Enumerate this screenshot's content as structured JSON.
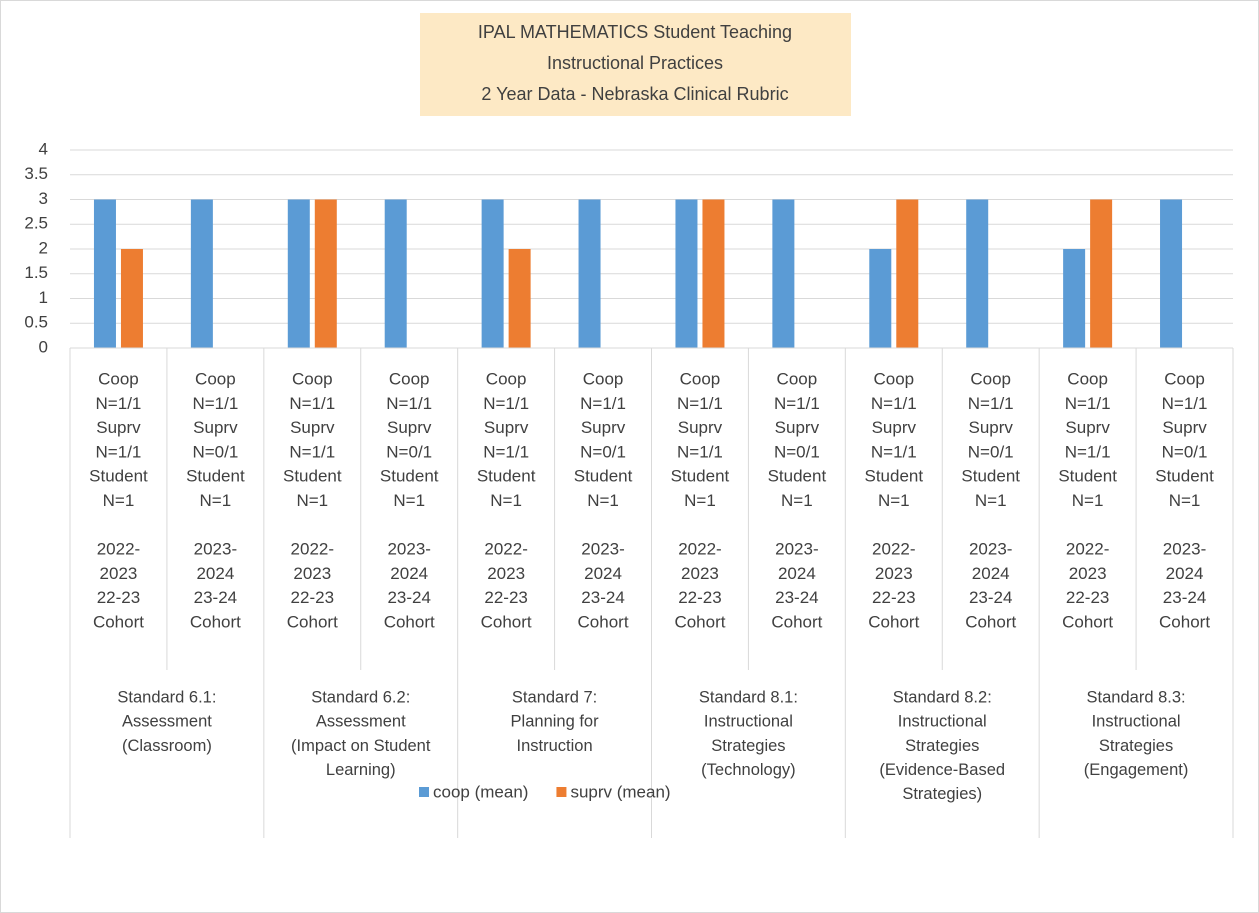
{
  "chart_data": {
    "type": "bar",
    "title": [
      "IPAL MATHEMATICS Student Teaching",
      "Instructional Practices",
      "2 Year Data - Nebraska Clinical Rubric"
    ],
    "categories": [
      [
        [
          "Coop",
          "N=1/1",
          "Suprv",
          "N=1/1",
          "Student",
          "N=1"
        ],
        [
          "2022-",
          "2023",
          "22-23",
          "Cohort"
        ]
      ],
      [
        [
          "Coop",
          "N=1/1",
          "Suprv",
          "N=0/1",
          "Student",
          "N=1"
        ],
        [
          "2023-",
          "2024",
          "23-24",
          "Cohort"
        ]
      ],
      [
        [
          "Coop",
          "N=1/1",
          "Suprv",
          "N=1/1",
          "Student",
          "N=1"
        ],
        [
          "2022-",
          "2023",
          "22-23",
          "Cohort"
        ]
      ],
      [
        [
          "Coop",
          "N=1/1",
          "Suprv",
          "N=0/1",
          "Student",
          "N=1"
        ],
        [
          "2023-",
          "2024",
          "23-24",
          "Cohort"
        ]
      ],
      [
        [
          "Coop",
          "N=1/1",
          "Suprv",
          "N=1/1",
          "Student",
          "N=1"
        ],
        [
          "2022-",
          "2023",
          "22-23",
          "Cohort"
        ]
      ],
      [
        [
          "Coop",
          "N=1/1",
          "Suprv",
          "N=0/1",
          "Student",
          "N=1"
        ],
        [
          "2023-",
          "2024",
          "23-24",
          "Cohort"
        ]
      ],
      [
        [
          "Coop",
          "N=1/1",
          "Suprv",
          "N=1/1",
          "Student",
          "N=1"
        ],
        [
          "2022-",
          "2023",
          "22-23",
          "Cohort"
        ]
      ],
      [
        [
          "Coop",
          "N=1/1",
          "Suprv",
          "N=0/1",
          "Student",
          "N=1"
        ],
        [
          "2023-",
          "2024",
          "23-24",
          "Cohort"
        ]
      ],
      [
        [
          "Coop",
          "N=1/1",
          "Suprv",
          "N=1/1",
          "Student",
          "N=1"
        ],
        [
          "2022-",
          "2023",
          "22-23",
          "Cohort"
        ]
      ],
      [
        [
          "Coop",
          "N=1/1",
          "Suprv",
          "N=0/1",
          "Student",
          "N=1"
        ],
        [
          "2023-",
          "2024",
          "23-24",
          "Cohort"
        ]
      ],
      [
        [
          "Coop",
          "N=1/1",
          "Suprv",
          "N=1/1",
          "Student",
          "N=1"
        ],
        [
          "2022-",
          "2023",
          "22-23",
          "Cohort"
        ]
      ],
      [
        [
          "Coop",
          "N=1/1",
          "Suprv",
          "N=0/1",
          "Student",
          "N=1"
        ],
        [
          "2023-",
          "2024",
          "23-24",
          "Cohort"
        ]
      ]
    ],
    "groups": [
      [
        "Standard 6.1:",
        "Assessment",
        "(Classroom)"
      ],
      [
        "Standard 6.2:",
        "Assessment",
        "(Impact on Student",
        "Learning)"
      ],
      [
        "Standard 7:",
        "Planning for",
        "Instruction"
      ],
      [
        "Standard 8.1:",
        "Instructional",
        "Strategies",
        "(Technology)"
      ],
      [
        "Standard 8.2:",
        "Instructional",
        "Strategies",
        "(Evidence-Based",
        "Strategies)"
      ],
      [
        "Standard 8.3:",
        "Instructional",
        "Strategies",
        "(Engagement)"
      ]
    ],
    "series": [
      {
        "name": "coop (mean)",
        "color": "#5b9bd5",
        "values": [
          3,
          3,
          3,
          3,
          3,
          3,
          3,
          3,
          2,
          3,
          2,
          3
        ]
      },
      {
        "name": "suprv (mean)",
        "color": "#ed7d31",
        "values": [
          2,
          null,
          3,
          null,
          2,
          null,
          3,
          null,
          3,
          null,
          3,
          null
        ]
      }
    ],
    "ylim": [
      0,
      4
    ],
    "yticks": [
      0,
      0.5,
      1,
      1.5,
      2,
      2.5,
      3,
      3.5,
      4
    ],
    "grid": true,
    "legend": "bottom"
  }
}
